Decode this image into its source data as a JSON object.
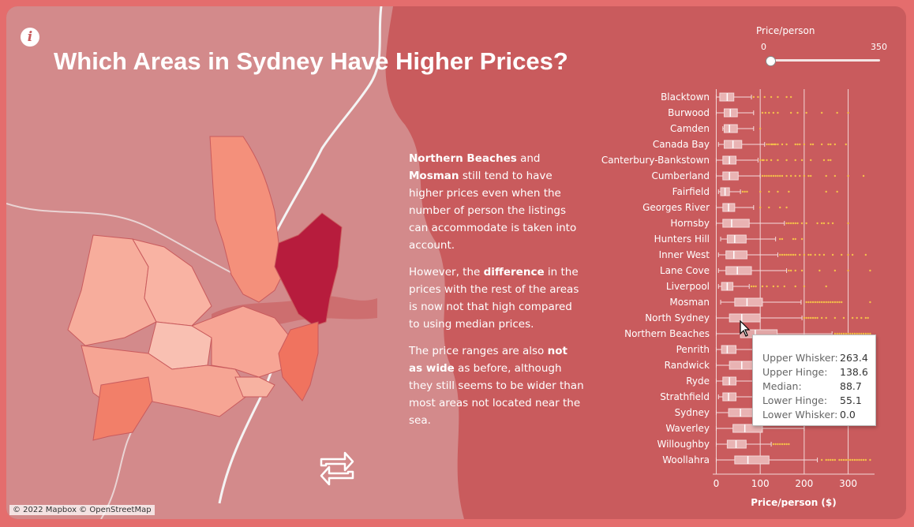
{
  "page": {
    "title": "Which Areas in Sydney Have Higher Prices?",
    "info_icon": "info-icon",
    "swap_icon": "swap-arrows-icon"
  },
  "colors": {
    "background": "#e46d6d",
    "card": "#c95b5d",
    "land": "#d88888",
    "water": "#c95b5d",
    "highlight": "#b71c3d",
    "outlier": "#f5c04a",
    "box": "#e9b3b3"
  },
  "narrative": {
    "p1_bold1": "Northern Beaches",
    "p1_text1": " and ",
    "p1_bold2": "Mosman",
    "p1_text2": " still tend to have higher prices even when the number of person the listings can accommodate is taken into account.",
    "p2_text1": "However, the ",
    "p2_bold": "difference",
    "p2_text2": " in the prices with the rest of the areas is now not that high compared to using median prices.",
    "p3_text1": "The price ranges are also ",
    "p3_bold": "not as wide",
    "p3_text2": " as before, although they still seems to be wider than most areas not located near the sea."
  },
  "slider": {
    "label": "Price/person",
    "min_label": "0",
    "max_label": "350",
    "value": 0
  },
  "tooltip": {
    "rows": [
      {
        "label": "Upper Whisker:",
        "value": "263.4"
      },
      {
        "label": "Upper Hinge:",
        "value": "138.6"
      },
      {
        "label": "Median:",
        "value": "88.7"
      },
      {
        "label": "Lower Hinge:",
        "value": "55.1"
      },
      {
        "label": "Lower Whisker:",
        "value": "0.0"
      }
    ]
  },
  "attribution": "© 2022 Mapbox © OpenStreetMap",
  "chart_data": {
    "type": "boxplot",
    "orientation": "horizontal",
    "xlabel": "Price/person ($)",
    "xticks": [
      0,
      100,
      200,
      300
    ],
    "xlim": [
      -8,
      360
    ],
    "grid": "vertical",
    "categories": [
      "Blacktown",
      "Burwood",
      "Camden",
      "Canada Bay",
      "Canterbury-Bankstown",
      "Cumberland",
      "Fairfield",
      "Georges River",
      "Hornsby",
      "Hunters Hill",
      "Inner West",
      "Lane Cove",
      "Liverpool",
      "Mosman",
      "North Sydney",
      "Northern Beaches",
      "Penrith",
      "Randwick",
      "Ryde",
      "Strathfield",
      "Sydney",
      "Waverley",
      "Willoughby",
      "Woollahra"
    ],
    "series": [
      {
        "area": "Blacktown",
        "lw": 0,
        "q1": 8,
        "med": 25,
        "q3": 40,
        "uw": 80,
        "outliers": [
          85,
          95,
          110,
          125,
          140,
          160,
          170
        ]
      },
      {
        "area": "Burwood",
        "lw": 0,
        "q1": 18,
        "med": 32,
        "q3": 48,
        "uw": 85,
        "outliers": [
          105,
          112,
          120,
          130,
          140,
          170,
          185,
          205,
          240,
          275,
          300
        ]
      },
      {
        "area": "Camden",
        "lw": 15,
        "q1": 18,
        "med": 30,
        "q3": 48,
        "uw": 85,
        "outliers": [
          100
        ]
      },
      {
        "area": "Canada Bay",
        "lw": 5,
        "q1": 18,
        "med": 38,
        "q3": 58,
        "uw": 110,
        "outliers": [
          115,
          120,
          125,
          128,
          132,
          135,
          140,
          150,
          160,
          180,
          185,
          190,
          200,
          215,
          220,
          240,
          255,
          260,
          270,
          295
        ]
      },
      {
        "area": "Canterbury-Bankstown",
        "lw": 0,
        "q1": 15,
        "med": 30,
        "q3": 45,
        "uw": 95,
        "outliers": [
          100,
          105,
          108,
          115,
          125,
          140,
          160,
          180,
          195,
          215,
          245,
          255,
          260
        ]
      },
      {
        "area": "Cumberland",
        "lw": 0,
        "q1": 15,
        "med": 30,
        "q3": 50,
        "uw": 100,
        "outliers": [
          105,
          110,
          115,
          120,
          125,
          130,
          135,
          140,
          145,
          150,
          160,
          170,
          180,
          190,
          200,
          210,
          215,
          250,
          270,
          300,
          335
        ]
      },
      {
        "area": "Fairfield",
        "lw": 5,
        "q1": 10,
        "med": 20,
        "q3": 30,
        "uw": 55,
        "outliers": [
          60,
          65,
          70,
          100,
          120,
          140,
          165,
          250,
          275
        ]
      },
      {
        "area": "Georges River",
        "lw": 0,
        "q1": 15,
        "med": 28,
        "q3": 42,
        "uw": 85,
        "outliers": [
          100,
          120,
          145,
          160
        ]
      },
      {
        "area": "Hornsby",
        "lw": 0,
        "q1": 15,
        "med": 35,
        "q3": 75,
        "uw": 155,
        "outliers": [
          160,
          165,
          170,
          175,
          180,
          185,
          195,
          205,
          230,
          240,
          245,
          255,
          265,
          300
        ]
      },
      {
        "area": "Hunters Hill",
        "lw": 10,
        "q1": 25,
        "med": 42,
        "q3": 68,
        "uw": 135,
        "outliers": [
          145,
          150,
          175,
          180,
          195
        ]
      },
      {
        "area": "Inner West",
        "lw": 5,
        "q1": 22,
        "med": 40,
        "q3": 70,
        "uw": 140,
        "outliers": [
          145,
          150,
          155,
          160,
          165,
          170,
          175,
          180,
          190,
          200,
          210,
          215,
          225,
          235,
          245,
          265,
          285,
          300,
          310,
          340
        ]
      },
      {
        "area": "Lane Cove",
        "lw": 5,
        "q1": 22,
        "med": 48,
        "q3": 80,
        "uw": 160,
        "outliers": [
          165,
          170,
          180,
          195,
          235,
          270,
          300,
          350
        ]
      },
      {
        "area": "Liverpool",
        "lw": 5,
        "q1": 12,
        "med": 25,
        "q3": 38,
        "uw": 75,
        "outliers": [
          80,
          85,
          90,
          105,
          115,
          130,
          140,
          155,
          180,
          200,
          250
        ]
      },
      {
        "area": "Mosman",
        "lw": 10,
        "q1": 42,
        "med": 70,
        "q3": 105,
        "uw": 193,
        "outliers": [
          205,
          210,
          215,
          220,
          225,
          230,
          235,
          240,
          245,
          250,
          255,
          260,
          265,
          270,
          275,
          280,
          285,
          350
        ]
      },
      {
        "area": "North Sydney",
        "lw": 0,
        "q1": 30,
        "med": 58,
        "q3": 100,
        "uw": 195,
        "outliers": [
          200,
          205,
          210,
          215,
          220,
          225,
          230,
          240,
          250,
          270,
          290,
          310,
          320,
          330,
          340,
          345
        ]
      },
      {
        "area": "Northern Beaches",
        "lw": 0,
        "q1": 55.1,
        "med": 88.7,
        "q3": 138.6,
        "uw": 263.4,
        "outliers": [
          270,
          275,
          280,
          285,
          290,
          295,
          300,
          305,
          310,
          315,
          320,
          325,
          330,
          335,
          340,
          345,
          350
        ]
      },
      {
        "area": "Penrith",
        "lw": 0,
        "q1": 12,
        "med": 25,
        "q3": 45,
        "uw": 90,
        "outliers": []
      },
      {
        "area": "Randwick",
        "lw": 0,
        "q1": 30,
        "med": 58,
        "q3": 95,
        "uw": 190,
        "outliers": []
      },
      {
        "area": "Ryde",
        "lw": 0,
        "q1": 15,
        "med": 30,
        "q3": 45,
        "uw": 95,
        "outliers": []
      },
      {
        "area": "Strathfield",
        "lw": 5,
        "q1": 15,
        "med": 28,
        "q3": 45,
        "uw": 90,
        "outliers": []
      },
      {
        "area": "Sydney",
        "lw": 0,
        "q1": 28,
        "med": 55,
        "q3": 95,
        "uw": 185,
        "outliers": []
      },
      {
        "area": "Waverley",
        "lw": 0,
        "q1": 38,
        "med": 65,
        "q3": 105,
        "uw": 200,
        "outliers": []
      },
      {
        "area": "Willoughby",
        "lw": 0,
        "q1": 25,
        "med": 45,
        "q3": 68,
        "uw": 125,
        "outliers": [
          130,
          135,
          140,
          145,
          150,
          155,
          160,
          165
        ]
      },
      {
        "area": "Woollahra",
        "lw": 0,
        "q1": 42,
        "med": 72,
        "q3": 120,
        "uw": 230,
        "outliers": [
          240,
          250,
          255,
          260,
          265,
          270,
          280,
          285,
          290,
          295,
          300,
          305,
          310,
          315,
          320,
          325,
          330,
          335,
          340,
          350
        ]
      }
    ]
  }
}
